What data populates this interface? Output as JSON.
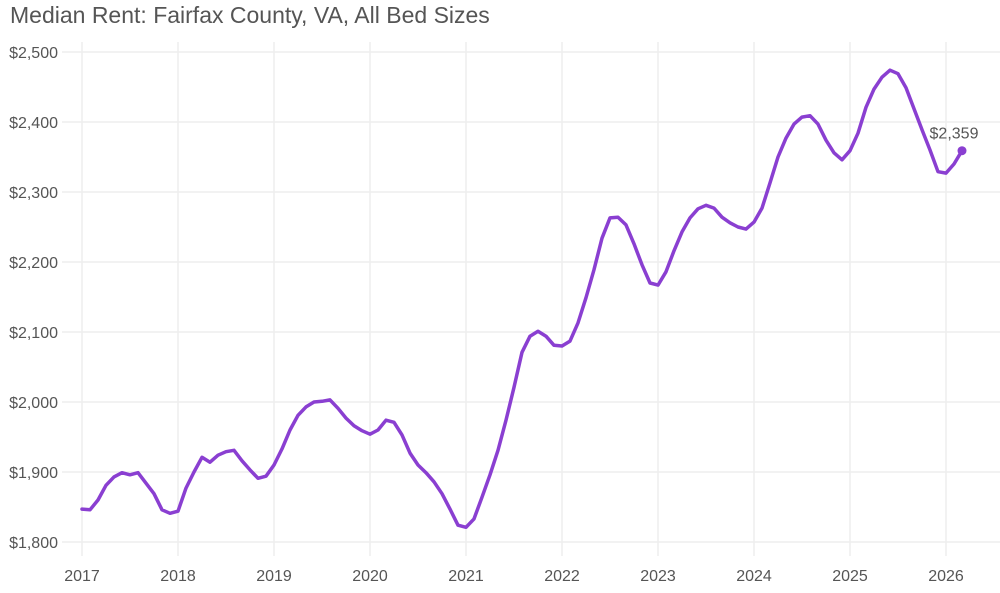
{
  "chart_data": {
    "type": "line",
    "title": "Median Rent: Fairfax County, VA, All Bed Sizes",
    "xlabel": "",
    "ylabel": "",
    "ylim": [
      1800,
      2500
    ],
    "xlim": [
      2017.0,
      2026.5
    ],
    "grid": true,
    "legend": "none",
    "y_ticks": [
      1800,
      1900,
      2000,
      2100,
      2200,
      2300,
      2400,
      2500
    ],
    "y_tick_labels": [
      "$1,800",
      "$1,900",
      "$2,000",
      "$2,100",
      "$2,200",
      "$2,300",
      "$2,400",
      "$2,500"
    ],
    "x_ticks": [
      2017,
      2018,
      2019,
      2020,
      2021,
      2022,
      2023,
      2024,
      2025,
      2026
    ],
    "x_tick_labels": [
      "2017",
      "2018",
      "2019",
      "2020",
      "2021",
      "2022",
      "2023",
      "2024",
      "2025",
      "2026"
    ],
    "line_color": "#8a3fd1",
    "end_label": "$2,359",
    "series": [
      {
        "name": "Median Rent",
        "start": "2017-01",
        "frequency": "monthly",
        "values": [
          1847,
          1846,
          1860,
          1881,
          1893,
          1899,
          1896,
          1899,
          1884,
          1869,
          1846,
          1841,
          1844,
          1877,
          1900,
          1921,
          1914,
          1924,
          1929,
          1931,
          1916,
          1903,
          1891,
          1894,
          1910,
          1933,
          1960,
          1981,
          1993,
          2000,
          2001,
          2003,
          1991,
          1977,
          1966,
          1959,
          1954,
          1960,
          1974,
          1971,
          1953,
          1927,
          1910,
          1899,
          1886,
          1869,
          1847,
          1824,
          1821,
          1833,
          1864,
          1896,
          1931,
          1974,
          2021,
          2071,
          2094,
          2101,
          2094,
          2081,
          2080,
          2087,
          2113,
          2149,
          2189,
          2234,
          2263,
          2264,
          2253,
          2226,
          2196,
          2170,
          2167,
          2186,
          2216,
          2243,
          2263,
          2276,
          2281,
          2277,
          2264,
          2256,
          2250,
          2247,
          2257,
          2277,
          2313,
          2350,
          2377,
          2397,
          2407,
          2409,
          2397,
          2374,
          2356,
          2346,
          2359,
          2384,
          2421,
          2447,
          2464,
          2474,
          2469,
          2449,
          2419,
          2389,
          2360,
          2329,
          2327,
          2340,
          2359
        ]
      }
    ]
  }
}
